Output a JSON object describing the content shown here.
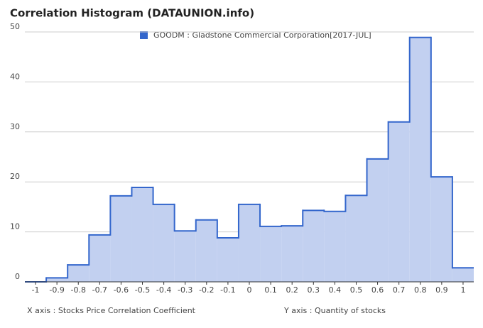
{
  "chart_data": {
    "type": "histogram",
    "title": "Correlation Histogram (DATAUNION.info)",
    "legend": "GOODM : Gladstone Commercial Corporation[2017-JUL]",
    "xlabel": "X axis : Stocks Price Correlation Coefficient",
    "ylabel": "Y axis : Quantity of stocks",
    "color": "#3366cc",
    "fill": "#c2d0f0",
    "bins": [
      -1.05,
      -0.95,
      -0.85,
      -0.75,
      -0.65,
      -0.55,
      -0.45,
      -0.35,
      -0.25,
      -0.15,
      -0.05,
      0.05,
      0.15,
      0.25,
      0.35,
      0.45,
      0.55,
      0.65,
      0.75,
      0.85,
      0.95,
      1.05
    ],
    "values": [
      0,
      0.8,
      3.4,
      9.4,
      17.2,
      18.9,
      15.5,
      10.2,
      12.4,
      8.8,
      15.5,
      11.1,
      11.2,
      14.3,
      14.1,
      17.3,
      24.6,
      32,
      48.9,
      21,
      2.8
    ],
    "xlim": [
      -1.05,
      1.05
    ],
    "xticks": [
      -1,
      -0.9,
      -0.8,
      -0.7,
      -0.6,
      -0.5,
      -0.4,
      -0.3,
      -0.2,
      -0.1,
      0,
      0.1,
      0.2,
      0.3,
      0.4,
      0.5,
      0.6,
      0.7,
      0.8,
      0.9,
      1
    ],
    "ylim": [
      0,
      50
    ],
    "yticks": [
      0,
      10,
      20,
      30,
      40,
      50
    ],
    "grid": true
  }
}
